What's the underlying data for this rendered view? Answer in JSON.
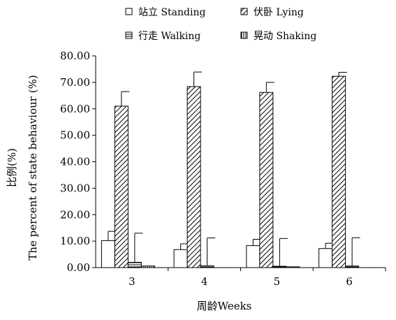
{
  "chart_data": {
    "type": "bar",
    "xlabel": "周龄Weeks",
    "ylabel_cn": "比例(%)",
    "ylabel_en": "The percent of state behaviour (%)",
    "categories": [
      "3",
      "4",
      "5",
      "6"
    ],
    "ylim": [
      0,
      80
    ],
    "yticks": [
      "0.00",
      "10.00",
      "20.00",
      "30.00",
      "40.00",
      "50.00",
      "60.00",
      "70.00",
      "80.00"
    ],
    "grid": false,
    "legend_position": "top",
    "series": [
      {
        "name": "站立 Standing",
        "pattern": "none",
        "values": [
          10.2,
          6.8,
          8.3,
          7.2
        ],
        "errors": [
          3.5,
          2.2,
          2.4,
          2.0
        ]
      },
      {
        "name": "伏卧 Lying",
        "pattern": "diagonal",
        "values": [
          61.0,
          68.4,
          66.2,
          72.3
        ],
        "errors": [
          5.5,
          5.5,
          3.8,
          1.5
        ]
      },
      {
        "name": "行走 Walking",
        "pattern": "horizontal",
        "values": [
          2.0,
          0.7,
          0.5,
          0.6
        ],
        "errors": [
          11.0,
          10.5,
          10.5,
          10.7
        ]
      },
      {
        "name": "晃动 Shaking",
        "pattern": "vertical",
        "values": [
          0.6,
          0.0,
          0.3,
          0.0
        ],
        "errors": [
          0,
          0,
          0,
          0
        ]
      }
    ]
  }
}
